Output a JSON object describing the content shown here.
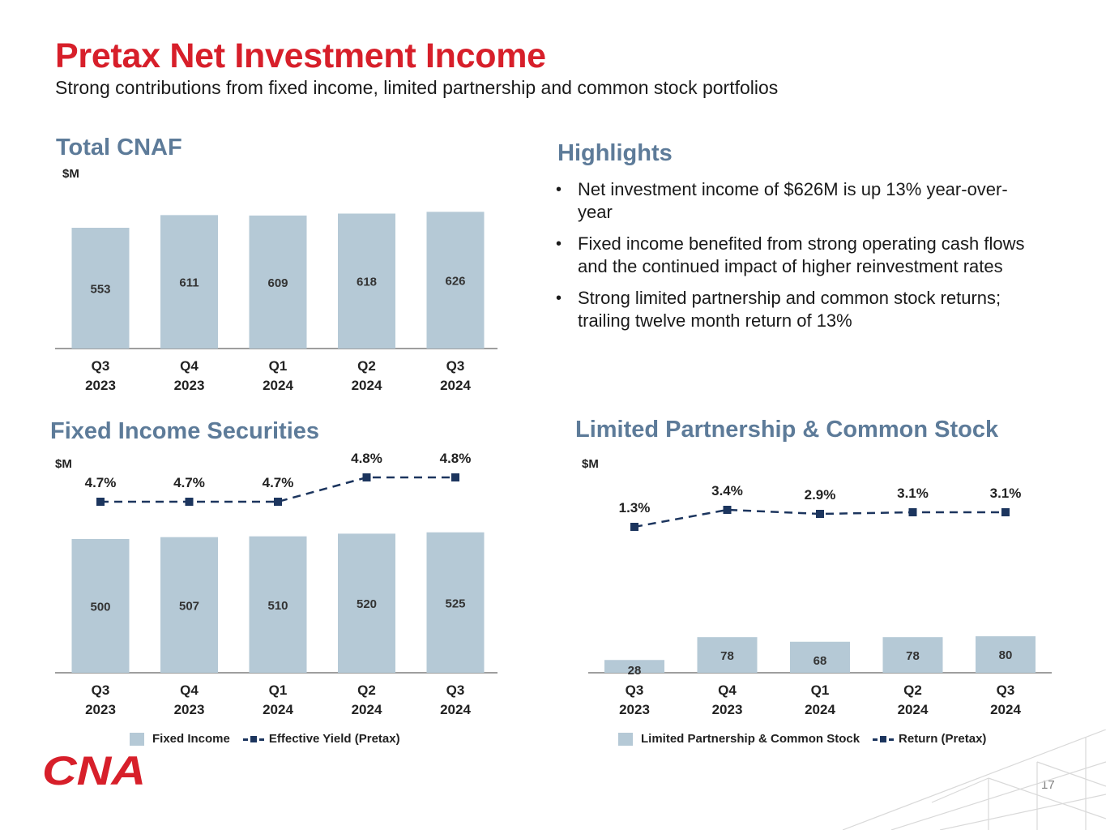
{
  "title": "Pretax Net Investment Income",
  "subtitle": "Strong contributions from fixed income, limited partnership and common stock portfolios",
  "highlights": {
    "heading": "Highlights",
    "items": [
      "Net investment income of $626M is up 13% year-over-year",
      "Fixed income benefited from strong operating cash flows and the continued impact of higher reinvestment rates",
      "Strong limited partnership and common stock returns; trailing twelve month return of 13%"
    ]
  },
  "colors": {
    "title": "#d71f2a",
    "section": "#5d7b99",
    "bar": "#b5c9d6",
    "line": "#1c355e",
    "axis": "#7f7f7f"
  },
  "charts": {
    "total": {
      "title": "Total CNAF",
      "unit": "$M"
    },
    "fixed": {
      "title": "Fixed Income Securities",
      "unit": "$M",
      "legend_bar": "Fixed Income",
      "legend_line": "Effective Yield (Pretax)"
    },
    "lp": {
      "title": "Limited Partnership & Common Stock",
      "unit": "$M",
      "legend_bar": "Limited Partnership & Common Stock",
      "legend_line": "Return (Pretax)"
    }
  },
  "chart_data": [
    {
      "id": "total",
      "type": "bar",
      "title": "Total CNAF",
      "ylabel": "$M",
      "categories": [
        "Q3 2023",
        "Q4 2023",
        "Q1 2024",
        "Q2 2024",
        "Q3 2024"
      ],
      "category_lines": [
        [
          "Q3",
          "2023"
        ],
        [
          "Q4",
          "2023"
        ],
        [
          "Q1",
          "2024"
        ],
        [
          "Q2",
          "2024"
        ],
        [
          "Q3",
          "2024"
        ]
      ],
      "values": [
        553,
        611,
        609,
        618,
        626
      ],
      "data_labels": [
        "553",
        "611",
        "609",
        "618",
        "626"
      ]
    },
    {
      "id": "fixed",
      "type": "bar+line",
      "title": "Fixed Income Securities",
      "ylabel": "$M",
      "categories": [
        "Q3 2023",
        "Q4 2023",
        "Q1 2024",
        "Q2 2024",
        "Q3 2024"
      ],
      "category_lines": [
        [
          "Q3",
          "2023"
        ],
        [
          "Q4",
          "2023"
        ],
        [
          "Q1",
          "2024"
        ],
        [
          "Q2",
          "2024"
        ],
        [
          "Q3",
          "2024"
        ]
      ],
      "series": [
        {
          "name": "Fixed Income",
          "kind": "bar",
          "values": [
            500,
            507,
            510,
            520,
            525
          ],
          "data_labels": [
            "500",
            "507",
            "510",
            "520",
            "525"
          ]
        },
        {
          "name": "Effective Yield (Pretax)",
          "kind": "line",
          "values": [
            4.7,
            4.7,
            4.7,
            4.8,
            4.8
          ],
          "data_labels": [
            "4.7%",
            "4.7%",
            "4.7%",
            "4.8%",
            "4.8%"
          ]
        }
      ]
    },
    {
      "id": "lp",
      "type": "bar+line",
      "title": "Limited Partnership & Common Stock",
      "ylabel": "$M",
      "categories": [
        "Q3 2023",
        "Q4 2023",
        "Q1 2024",
        "Q2 2024",
        "Q3 2024"
      ],
      "category_lines": [
        [
          "Q3",
          "2023"
        ],
        [
          "Q4",
          "2023"
        ],
        [
          "Q1",
          "2024"
        ],
        [
          "Q2",
          "2024"
        ],
        [
          "Q3",
          "2024"
        ]
      ],
      "series": [
        {
          "name": "Limited Partnership & Common Stock",
          "kind": "bar",
          "values": [
            28,
            78,
            68,
            78,
            80
          ],
          "data_labels": [
            "28",
            "78",
            "68",
            "78",
            "80"
          ]
        },
        {
          "name": "Return (Pretax)",
          "kind": "line",
          "values": [
            1.3,
            3.4,
            2.9,
            3.1,
            3.1
          ],
          "data_labels": [
            "1.3%",
            "3.4%",
            "2.9%",
            "3.1%",
            "3.1%"
          ]
        }
      ]
    }
  ],
  "logo": {
    "name": "cna-logo",
    "text": "CNA"
  },
  "page_number": "17"
}
